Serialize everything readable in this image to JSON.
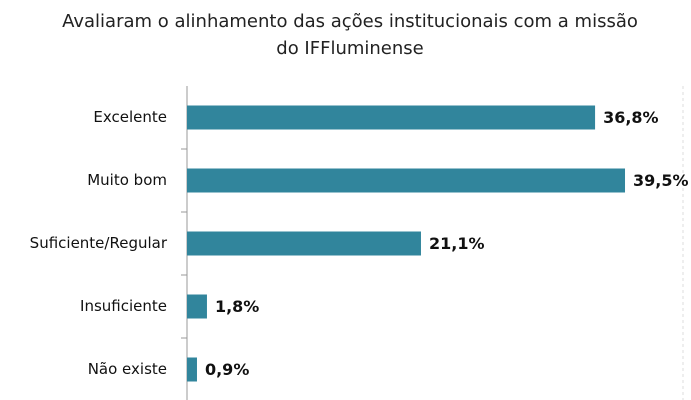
{
  "chart_data": {
    "type": "bar",
    "orientation": "horizontal",
    "title": "Avaliaram o alinhamento das ações institucionais com a missão do IFFluminense",
    "categories": [
      "Excelente",
      "Muito bom",
      "Suficiente/Regular",
      "Insuficiente",
      "Não existe"
    ],
    "values": [
      36.8,
      39.5,
      21.1,
      1.8,
      0.9
    ],
    "value_labels": [
      "36,8%",
      "39,5%",
      "21,1%",
      "1,8%",
      "0,9%"
    ],
    "color": "#31859c",
    "xlim": [
      0,
      45
    ]
  }
}
